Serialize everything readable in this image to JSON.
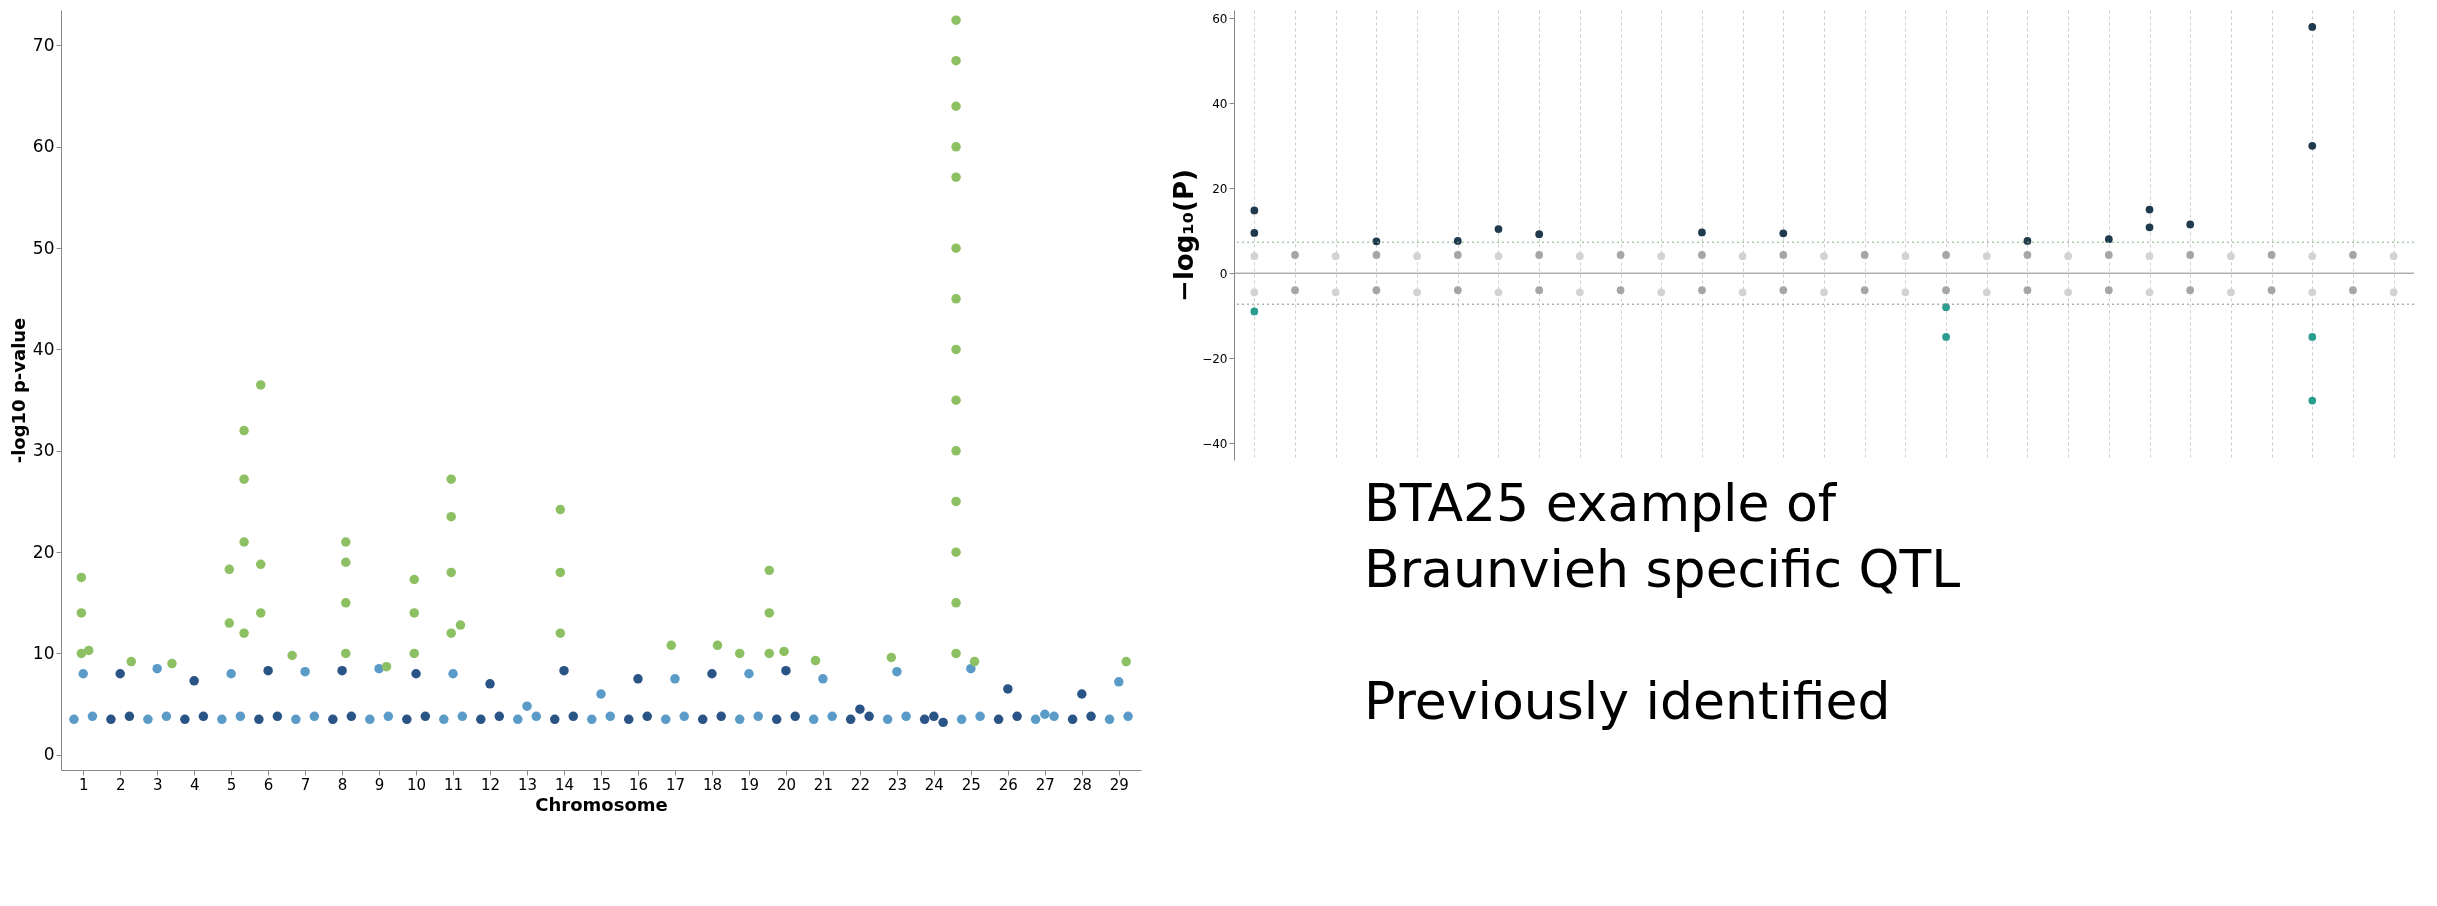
{
  "chart_data": [
    {
      "type": "scatter",
      "xlabel": "Chromosome",
      "ylabel": "-log10 p-value",
      "xlim": [
        0.4,
        29.6
      ],
      "xticks": [
        1,
        2,
        3,
        4,
        5,
        6,
        7,
        8,
        9,
        10,
        11,
        12,
        13,
        14,
        15,
        16,
        17,
        18,
        19,
        20,
        21,
        22,
        23,
        24,
        25,
        26,
        27,
        28,
        29
      ],
      "ylim": [
        -1.5,
        73.5
      ],
      "yticks": [
        0,
        10,
        20,
        30,
        40,
        50,
        60,
        70
      ],
      "marker": "circle",
      "series": [
        {
          "color": "#5b9bc8",
          "x": [
            0.75,
            1,
            1.25,
            2.75,
            3,
            3.25,
            4.75,
            5,
            5.25,
            6.75,
            7,
            7.25,
            8.75,
            9,
            9.25,
            10.75,
            11,
            11.25,
            12.75,
            13,
            13.25,
            14.75,
            15,
            15.25,
            16.75,
            17,
            17.25,
            18.75,
            19,
            19.25,
            20.75,
            21,
            21.25,
            22.75,
            23,
            23.25,
            24.75,
            25,
            25.25,
            26.75,
            27,
            27.25,
            28.75,
            29,
            29.25
          ],
          "values": [
            3.5,
            8,
            3.8,
            3.5,
            8.5,
            3.8,
            3.5,
            8,
            3.8,
            3.5,
            8.2,
            3.8,
            3.5,
            8.5,
            3.8,
            3.5,
            8,
            3.8,
            3.5,
            4.8,
            3.8,
            3.5,
            6,
            3.8,
            3.5,
            7.5,
            3.8,
            3.5,
            8,
            3.8,
            3.5,
            7.5,
            3.8,
            3.5,
            8.2,
            3.8,
            3.5,
            8.5,
            3.8,
            3.5,
            4,
            3.8,
            3.5,
            7.2,
            3.8
          ]
        },
        {
          "color": "#2b5486",
          "x": [
            1.75,
            2,
            2.25,
            3.75,
            4,
            4.25,
            5.75,
            6,
            6.25,
            7.75,
            8,
            8.25,
            9.75,
            10,
            10.25,
            11.75,
            12,
            12.25,
            13.75,
            14,
            14.25,
            15.75,
            16,
            16.25,
            17.75,
            18,
            18.25,
            19.75,
            20,
            20.25,
            21.75,
            22,
            22.25,
            23.75,
            24,
            24.25,
            25.75,
            26,
            26.25,
            27.75,
            28,
            28.25
          ],
          "values": [
            3.5,
            8,
            3.8,
            3.5,
            7.3,
            3.8,
            3.5,
            8.3,
            3.8,
            3.5,
            8.3,
            3.8,
            3.5,
            8,
            3.8,
            3.5,
            7,
            3.8,
            3.5,
            8.3,
            3.8,
            3.5,
            7.5,
            3.8,
            3.5,
            8,
            3.8,
            3.5,
            8.3,
            3.8,
            3.5,
            4.5,
            3.8,
            3.5,
            3.8,
            3.2,
            3.5,
            6.5,
            3.8,
            3.5,
            6,
            3.8
          ]
        },
        {
          "color": "#8cc063",
          "x": [
            0.95,
            0.95,
            0.95,
            1.15,
            2.3,
            3.4,
            4.95,
            4.95,
            5.35,
            5.35,
            5.35,
            5.35,
            5.8,
            5.8,
            5.8,
            6.65,
            8.1,
            8.1,
            8.1,
            8.1,
            9.2,
            9.95,
            9.95,
            9.95,
            10.95,
            10.95,
            10.95,
            10.95,
            11.2,
            13.9,
            13.9,
            13.9,
            16.9,
            18.15,
            18.75,
            19.55,
            19.55,
            19.55,
            19.95,
            20.8,
            22.85,
            24.6,
            24.6,
            24.6,
            24.6,
            24.6,
            24.6,
            24.6,
            24.6,
            24.6,
            24.6,
            24.6,
            24.6,
            24.6,
            24.6,
            25.1,
            29.2
          ],
          "values": [
            17.5,
            14,
            10,
            10.3,
            9.2,
            9,
            18.3,
            13,
            32,
            27.2,
            21,
            12,
            36.5,
            18.8,
            14,
            9.8,
            21,
            19,
            15,
            10,
            8.7,
            17.3,
            14,
            10,
            27.2,
            23.5,
            18,
            12,
            12.8,
            24.2,
            18,
            12,
            10.8,
            10.8,
            10,
            18.2,
            14,
            10,
            10.2,
            9.3,
            9.6,
            72.5,
            68.5,
            64,
            60,
            57,
            50,
            45,
            40,
            35,
            30,
            25,
            20,
            15,
            10,
            9.2,
            9.2
          ]
        }
      ]
    },
    {
      "type": "scatter",
      "ylabel": "−log₁₀(P)",
      "categories": [
        null,
        null,
        null,
        null,
        null,
        null,
        null,
        null,
        null,
        null,
        null,
        null,
        null,
        null,
        null,
        null,
        null,
        null,
        null,
        null,
        null,
        null,
        null,
        null,
        null,
        null,
        null,
        null,
        null
      ],
      "ylim": [
        -44,
        62
      ],
      "yticks": [
        -40,
        -20,
        0,
        20,
        40,
        60
      ],
      "tick_labels": "y",
      "grid": "x",
      "marker": "circle",
      "ref_lines": [
        {
          "axis": "y",
          "value": 7.3,
          "color": "#7fb27f",
          "line_style": "dotted"
        },
        {
          "axis": "y",
          "value": -7.3,
          "color": "#888888",
          "line_style": "dotted"
        },
        {
          "axis": "y",
          "value": 0,
          "color": "#888888",
          "line_style": "solid"
        }
      ],
      "series": [
        {
          "colors": [
            "#d3d3d3",
            "#a6a6a6",
            "#d3d3d3",
            "#a6a6a6",
            "#d3d3d3",
            "#a6a6a6",
            "#d3d3d3",
            "#a6a6a6",
            "#d3d3d3",
            "#a6a6a6",
            "#d3d3d3",
            "#a6a6a6",
            "#d3d3d3",
            "#a6a6a6",
            "#d3d3d3",
            "#a6a6a6",
            "#d3d3d3",
            "#a6a6a6",
            "#d3d3d3",
            "#a6a6a6",
            "#d3d3d3",
            "#a6a6a6",
            "#d3d3d3",
            "#a6a6a6",
            "#d3d3d3",
            "#a6a6a6",
            "#d3d3d3",
            "#a6a6a6",
            "#d3d3d3"
          ],
          "values": [
            4,
            4.3,
            4,
            4.3,
            4,
            4.3,
            4,
            4.3,
            4,
            4.3,
            4,
            4.3,
            4,
            4.3,
            4,
            4.3,
            4,
            4.3,
            4,
            4.3,
            4,
            4.3,
            4,
            4.3,
            4,
            4.3,
            4,
            4.3,
            4
          ]
        },
        {
          "colors": [
            "#d3d3d3",
            "#a6a6a6",
            "#d3d3d3",
            "#a6a6a6",
            "#d3d3d3",
            "#a6a6a6",
            "#d3d3d3",
            "#a6a6a6",
            "#d3d3d3",
            "#a6a6a6",
            "#d3d3d3",
            "#a6a6a6",
            "#d3d3d3",
            "#a6a6a6",
            "#d3d3d3",
            "#a6a6a6",
            "#d3d3d3",
            "#a6a6a6",
            "#d3d3d3",
            "#a6a6a6",
            "#d3d3d3",
            "#a6a6a6",
            "#d3d3d3",
            "#a6a6a6",
            "#d3d3d3",
            "#a6a6a6",
            "#d3d3d3",
            "#a6a6a6",
            "#d3d3d3"
          ],
          "values": [
            -4.5,
            -4,
            -4.5,
            -4,
            -4.5,
            -4,
            -4.5,
            -4,
            -4.5,
            -4,
            -4.5,
            -4,
            -4.5,
            -4,
            -4.5,
            -4,
            -4.5,
            -4,
            -4.5,
            -4,
            -4.5,
            -4,
            -4.5,
            -4,
            -4.5,
            -4,
            -4.5,
            -4,
            -4.5
          ]
        },
        {
          "color": "#1f3a4d",
          "values": [
            14.8,
            null,
            null,
            7.5,
            null,
            7.6,
            10.4,
            9.2,
            null,
            null,
            null,
            9.6,
            null,
            9.4,
            null,
            null,
            null,
            null,
            null,
            7.6,
            null,
            8,
            15,
            11.5,
            null,
            null,
            58,
            null,
            null
          ]
        },
        {
          "color": "#1f3a4d",
          "values": [
            9.5,
            null,
            null,
            null,
            null,
            null,
            null,
            null,
            null,
            null,
            null,
            null,
            null,
            null,
            null,
            null,
            null,
            null,
            null,
            null,
            null,
            null,
            10.8,
            null,
            null,
            null,
            30,
            null,
            null
          ]
        },
        {
          "color": "#2a9d8f",
          "values": [
            -9,
            null,
            null,
            null,
            null,
            null,
            null,
            null,
            null,
            null,
            null,
            null,
            null,
            null,
            null,
            null,
            null,
            -15,
            null,
            null,
            null,
            null,
            null,
            null,
            null,
            null,
            -30,
            null,
            null
          ]
        },
        {
          "color": "#2a9d8f",
          "values": [
            null,
            null,
            null,
            null,
            null,
            null,
            null,
            null,
            null,
            null,
            null,
            null,
            null,
            null,
            null,
            null,
            null,
            -8,
            null,
            null,
            null,
            null,
            null,
            null,
            null,
            null,
            -15,
            null,
            null
          ]
        }
      ]
    },
    {
      "type": "other",
      "annotations": [
        "BTA25 example of\nBraunvieh specific QTL",
        "Previously identified"
      ]
    }
  ]
}
